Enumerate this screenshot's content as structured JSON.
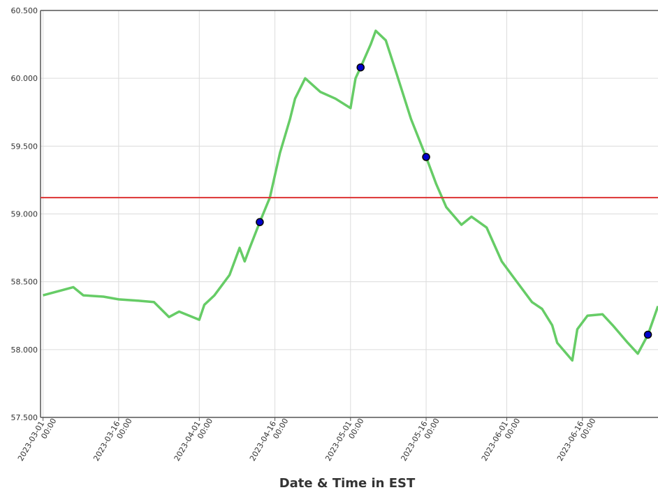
{
  "chart_data": {
    "type": "line",
    "x_label": "Date & Time in EST",
    "x": [
      "2023-03-01 00:00",
      "2023-03-05 00:00",
      "2023-03-07 00:00",
      "2023-03-09 00:00",
      "2023-03-13 00:00",
      "2023-03-16 00:00",
      "2023-03-20 00:00",
      "2023-03-23 00:00",
      "2023-03-26 00:00",
      "2023-03-28 00:00",
      "2023-04-01 00:00",
      "2023-04-02 00:00",
      "2023-04-04 00:00",
      "2023-04-06 00:00",
      "2023-04-07 00:00",
      "2023-04-09 00:00",
      "2023-04-10 00:00",
      "2023-04-11 00:00",
      "2023-04-13 00:00",
      "2023-04-15 00:00",
      "2023-04-17 00:00",
      "2023-04-19 00:00",
      "2023-04-20 00:00",
      "2023-04-22 00:00",
      "2023-04-25 00:00",
      "2023-04-28 00:00",
      "2023-05-01 00:00",
      "2023-05-02 00:00",
      "2023-05-03 00:00",
      "2023-05-05 00:00",
      "2023-05-06 00:00",
      "2023-05-08 00:00",
      "2023-05-10 00:00",
      "2023-05-13 00:00",
      "2023-05-16 00:00",
      "2023-05-18 00:00",
      "2023-05-20 00:00",
      "2023-05-23 00:00",
      "2023-05-25 00:00",
      "2023-05-28 00:00",
      "2023-05-31 00:00",
      "2023-06-02 00:00",
      "2023-06-06 00:00",
      "2023-06-08 00:00",
      "2023-06-10 00:00",
      "2023-06-11 00:00",
      "2023-06-14 00:00",
      "2023-06-15 00:00",
      "2023-06-17 00:00",
      "2023-06-20 00:00",
      "2023-06-22 00:00",
      "2023-06-25 00:00",
      "2023-06-27 00:00",
      "2023-06-29 00:00",
      "2023-07-01 00:00"
    ],
    "values": [
      58.4,
      58.44,
      58.46,
      58.4,
      58.39,
      58.37,
      58.36,
      58.35,
      58.24,
      58.28,
      58.22,
      58.33,
      58.4,
      58.5,
      58.55,
      58.75,
      58.65,
      58.75,
      58.94,
      59.12,
      59.45,
      59.7,
      59.85,
      60.0,
      59.9,
      59.85,
      59.78,
      60.0,
      60.08,
      60.25,
      60.35,
      60.28,
      60.05,
      59.7,
      59.42,
      59.22,
      59.05,
      58.92,
      58.98,
      58.9,
      58.65,
      58.55,
      58.35,
      58.3,
      58.18,
      58.05,
      57.92,
      58.15,
      58.25,
      58.26,
      58.18,
      58.05,
      57.97,
      58.11,
      58.32
    ],
    "color": "#66cc66",
    "markers": {
      "x": [
        "2023-04-13 00:00",
        "2023-05-03 00:00",
        "2023-05-16 00:00",
        "2023-06-29 00:00"
      ],
      "values": [
        58.94,
        60.08,
        59.42,
        58.11
      ],
      "color": "#0000cc"
    },
    "threshold": 59.12,
    "threshold_color": "#dd3333",
    "xlim": [
      "2023-02-28 12:00",
      "2023-07-01 00:00"
    ],
    "xticks": [
      "2023-03-01 00:00",
      "2023-03-16 00:00",
      "2023-04-01 00:00",
      "2023-04-16 00:00",
      "2023-05-01 00:00",
      "2023-05-16 00:00",
      "2023-06-01 00:00",
      "2023-06-16 00:00"
    ],
    "ylim": [
      57.5,
      60.5
    ],
    "yticks": [
      {
        "value": 57.5,
        "label": "57.500"
      },
      {
        "value": 58,
        "label": "58.000"
      },
      {
        "value": 58.5,
        "label": "58.500"
      },
      {
        "value": 59,
        "label": "59.000"
      },
      {
        "value": 59.5,
        "label": "59.500"
      },
      {
        "value": 60,
        "label": "60.000"
      },
      {
        "value": 60.5,
        "label": "60.500"
      }
    ],
    "grid": true
  }
}
